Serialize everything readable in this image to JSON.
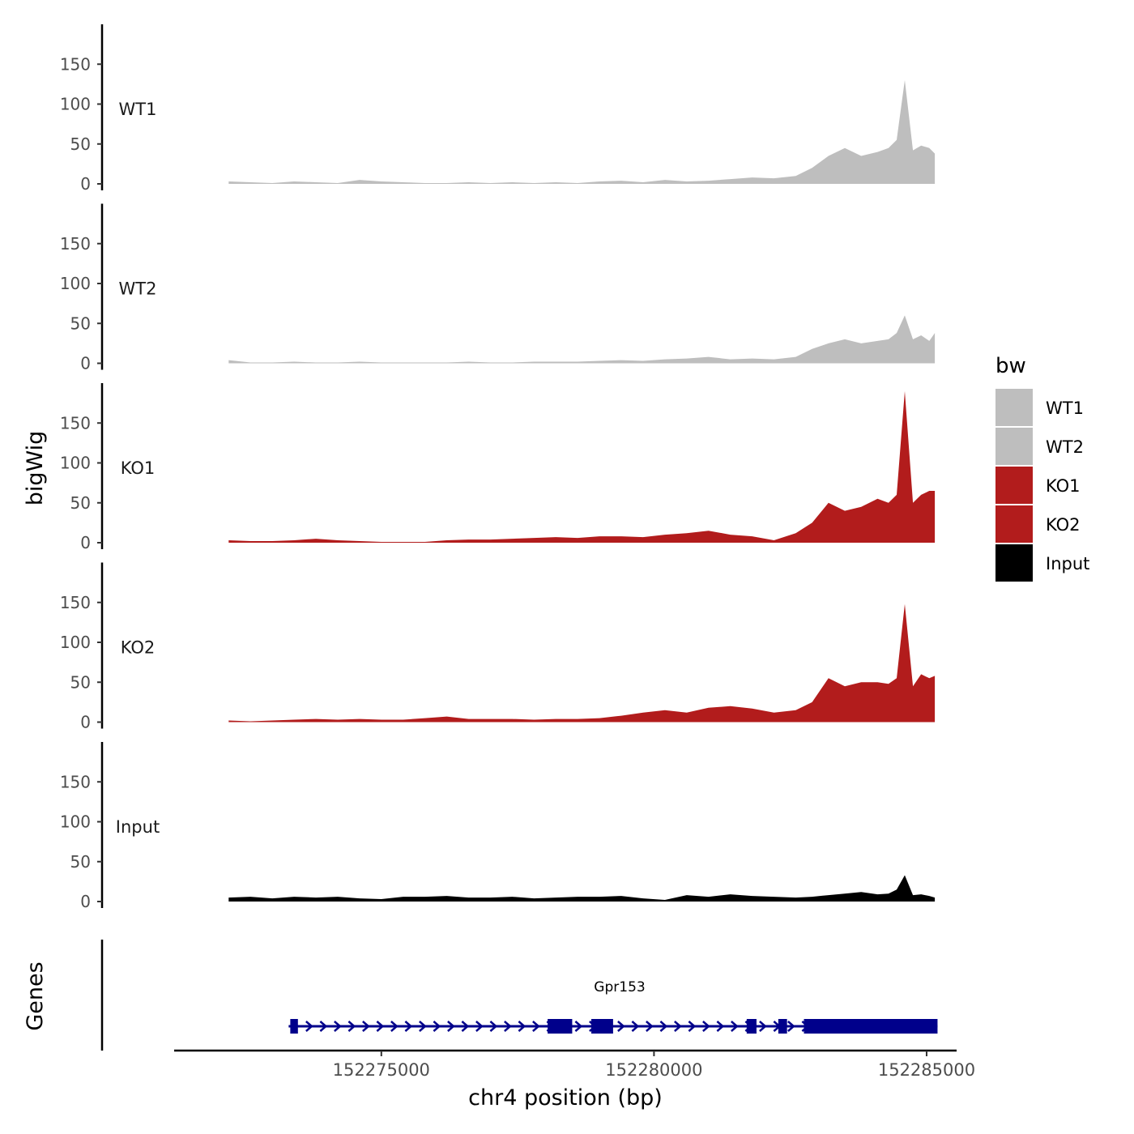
{
  "chart_data": {
    "type": "area",
    "ylabel": "bigWig",
    "genes_label": "Genes",
    "xlabel": "chr4 position (bp)",
    "xlim": [
      152271200,
      152285550
    ],
    "ylim": [
      0,
      200
    ],
    "x_ticks": [
      152275000,
      152280000,
      152285000
    ],
    "y_ticks": [
      0,
      50,
      100,
      150
    ],
    "legend": {
      "title": "bw",
      "position": "right",
      "entries": [
        {
          "label": "WT1",
          "color": "#bebebe"
        },
        {
          "label": "WT2",
          "color": "#bebebe"
        },
        {
          "label": "KO1",
          "color": "#b21c1c"
        },
        {
          "label": "KO2",
          "color": "#b21c1c"
        },
        {
          "label": "Input",
          "color": "#000000"
        }
      ]
    },
    "x": [
      152272200,
      152272600,
      152273000,
      152273400,
      152273800,
      152274200,
      152274600,
      152275000,
      152275400,
      152275800,
      152276200,
      152276600,
      152277000,
      152277400,
      152277800,
      152278200,
      152278600,
      152279000,
      152279400,
      152279800,
      152280200,
      152280600,
      152281000,
      152281400,
      152281800,
      152282200,
      152282600,
      152282900,
      152283200,
      152283500,
      152283800,
      152284100,
      152284300,
      152284450,
      152284600,
      152284750,
      152284900,
      152285050,
      152285150
    ],
    "series": [
      {
        "name": "WT1",
        "color": "#bebebe",
        "values": [
          3,
          2,
          1,
          3,
          2,
          1,
          5,
          3,
          2,
          1,
          1,
          2,
          1,
          2,
          1,
          2,
          1,
          3,
          4,
          2,
          5,
          3,
          4,
          6,
          8,
          7,
          10,
          20,
          35,
          45,
          35,
          40,
          45,
          55,
          130,
          42,
          48,
          45,
          38
        ]
      },
      {
        "name": "WT2",
        "color": "#bebebe",
        "values": [
          4,
          1,
          1,
          2,
          1,
          1,
          2,
          1,
          1,
          1,
          1,
          2,
          1,
          1,
          2,
          2,
          2,
          3,
          4,
          3,
          5,
          6,
          8,
          5,
          6,
          5,
          8,
          18,
          25,
          30,
          25,
          28,
          30,
          38,
          60,
          30,
          35,
          28,
          38
        ]
      },
      {
        "name": "KO1",
        "color": "#b21c1c",
        "values": [
          3,
          2,
          2,
          3,
          5,
          3,
          2,
          1,
          1,
          1,
          3,
          4,
          4,
          5,
          6,
          7,
          6,
          8,
          8,
          7,
          10,
          12,
          15,
          10,
          8,
          3,
          12,
          25,
          50,
          40,
          45,
          55,
          50,
          60,
          190,
          50,
          60,
          65,
          65
        ]
      },
      {
        "name": "KO2",
        "color": "#b21c1c",
        "values": [
          2,
          1,
          2,
          3,
          4,
          3,
          4,
          3,
          3,
          5,
          7,
          4,
          4,
          4,
          3,
          4,
          4,
          5,
          8,
          12,
          15,
          12,
          18,
          20,
          17,
          12,
          15,
          25,
          55,
          45,
          50,
          50,
          48,
          55,
          148,
          45,
          60,
          55,
          58
        ]
      },
      {
        "name": "Input",
        "color": "#000000",
        "values": [
          5,
          6,
          4,
          6,
          5,
          6,
          4,
          3,
          6,
          6,
          7,
          5,
          5,
          6,
          4,
          5,
          6,
          6,
          7,
          4,
          2,
          8,
          6,
          9,
          7,
          6,
          5,
          6,
          8,
          10,
          12,
          9,
          10,
          15,
          33,
          8,
          9,
          7,
          5
        ]
      }
    ],
    "gene": {
      "name": "Gpr153",
      "start": 152273300,
      "end": 152285200,
      "strand": "+",
      "color": "#00008b",
      "exons": [
        [
          152273330,
          152273470
        ],
        [
          152278050,
          152278500
        ],
        [
          152278850,
          152279250
        ],
        [
          152281700,
          152281880
        ],
        [
          152282280,
          152282440
        ],
        [
          152282750,
          152285200
        ]
      ]
    }
  }
}
